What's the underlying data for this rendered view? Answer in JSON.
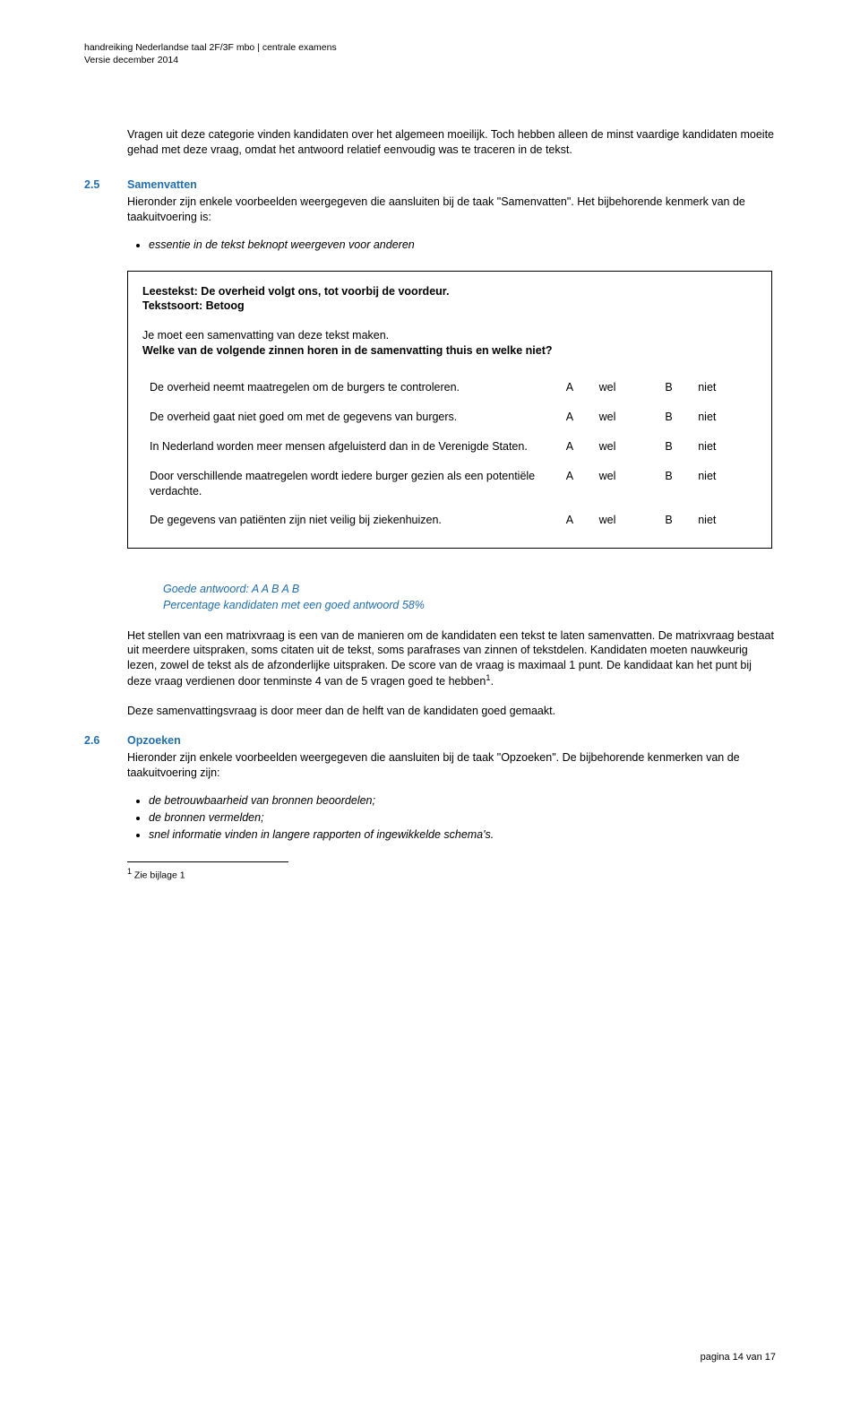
{
  "colors": {
    "accent": "#1f6fb5",
    "text": "#000000",
    "background": "#ffffff",
    "border": "#000000"
  },
  "fonts": {
    "family": "Verdana",
    "body_size_pt": 9.5,
    "header_size_pt": 8,
    "footnote_size_pt": 8
  },
  "header": {
    "line1": "handreiking Nederlandse taal 2F/3F mbo | centrale examens",
    "line2": "Versie december 2014"
  },
  "intro": "Vragen uit deze categorie vinden kandidaten over het algemeen moeilijk. Toch hebben alleen de minst vaardige kandidaten moeite gehad met deze vraag, omdat het antwoord relatief eenvoudig was te traceren in de tekst.",
  "sec25": {
    "num": "2.5",
    "title": "Samenvatten",
    "intro": "Hieronder zijn enkele voorbeelden weergegeven die aansluiten bij de taak \"Samenvatten\". Het bijbehorende kenmerk van de taakuitvoering is:",
    "bullets": [
      "essentie in de tekst beknopt weergeven voor anderen"
    ]
  },
  "box": {
    "leestekst": "Leestekst: De overheid volgt ons, tot voorbij de voordeur.",
    "tekstsoort": "Tekstsoort: Betoog",
    "instr1": "Je moet een samenvatting van deze tekst maken.",
    "instr2": "Welke van de volgende zinnen horen in de samenvatting thuis en welke niet?",
    "rows": [
      {
        "stmt": "De overheid neemt maatregelen om de burgers te controleren.",
        "a": "A",
        "wel": "wel",
        "b": "B",
        "niet": "niet"
      },
      {
        "stmt": "De overheid gaat niet goed om met de gegevens van burgers.",
        "a": "A",
        "wel": "wel",
        "b": "B",
        "niet": "niet"
      },
      {
        "stmt": "In Nederland worden meer mensen afgeluisterd dan in de Verenigde Staten.",
        "a": "A",
        "wel": "wel",
        "b": "B",
        "niet": "niet"
      },
      {
        "stmt": "Door verschillende maatregelen wordt iedere burger gezien als een potentiële verdachte.",
        "a": "A",
        "wel": "wel",
        "b": "B",
        "niet": "niet"
      },
      {
        "stmt": "De gegevens van patiënten zijn niet veilig bij ziekenhuizen.",
        "a": "A",
        "wel": "wel",
        "b": "B",
        "niet": "niet"
      }
    ]
  },
  "answer": {
    "line1": "Goede antwoord: A A B A B",
    "line2": "Percentage kandidaten met een goed antwoord 58%"
  },
  "para1_pre": "Het stellen van een matrixvraag is een van de manieren om de kandidaten een tekst te laten samenvatten. De matrixvraag bestaat uit meerdere uitspraken, soms citaten uit de tekst, soms parafrases van zinnen of tekstdelen. Kandidaten moeten nauwkeurig lezen, zowel de tekst als de afzonderlijke uitspraken. De score van de vraag is maximaal 1 punt. De kandidaat kan het punt bij deze vraag verdienen door tenminste 4 van de 5 vragen goed te hebben",
  "para1_post": ".",
  "para2": "Deze samenvattingsvraag is door meer dan de helft van de kandidaten goed gemaakt.",
  "sec26": {
    "num": "2.6",
    "title": "Opzoeken",
    "intro": "Hieronder zijn enkele voorbeelden weergegeven die aansluiten bij de taak \"Opzoeken\". De bijbehorende kenmerken van de taakuitvoering zijn:",
    "bullets": [
      "de betrouwbaarheid van bronnen beoordelen;",
      "de bronnen vermelden;",
      "snel informatie vinden in langere rapporten of ingewikkelde schema's."
    ]
  },
  "footnote": {
    "marker": "1",
    "text": " Zie bijlage 1"
  },
  "pagenum": "pagina 14 van 17"
}
